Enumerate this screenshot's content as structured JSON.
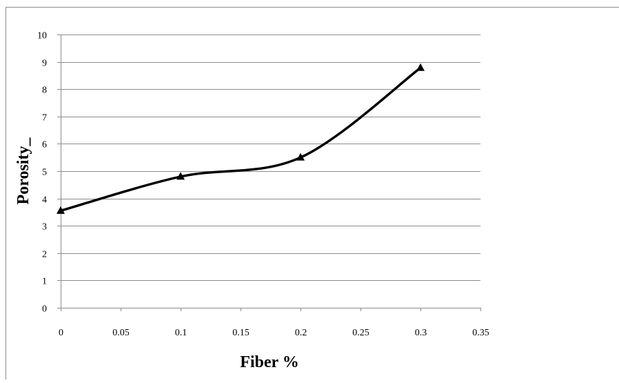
{
  "chart_data": {
    "type": "line",
    "title": "",
    "xlabel": "Fiber %",
    "ylabel": "Porosity_",
    "xlim": [
      0,
      0.35
    ],
    "ylim": [
      0,
      10
    ],
    "x_ticks": [
      "0",
      "0.05",
      "0.1",
      "0.15",
      "0.2",
      "0.25",
      "0.3",
      "0.35"
    ],
    "y_ticks": [
      "0",
      "1",
      "2",
      "3",
      "4",
      "5",
      "6",
      "7",
      "8",
      "9",
      "10"
    ],
    "grid": "horizontal",
    "legend": "none",
    "marker": "triangle",
    "smoothed": true,
    "series": [
      {
        "x": [
          0,
          0.1,
          0.2,
          0.3
        ],
        "y": [
          3.55,
          4.8,
          5.5,
          8.78
        ],
        "color": "#000000"
      }
    ]
  }
}
